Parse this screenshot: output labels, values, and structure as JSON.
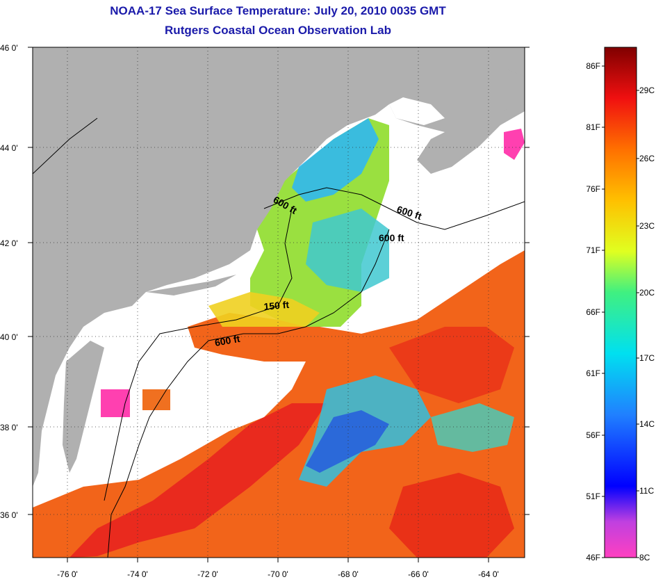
{
  "title": {
    "line1": "NOAA-17 Sea Surface Temperature:  July 20, 2010 0035 GMT",
    "line2": "Rutgers Coastal Ocean Observation Lab"
  },
  "map": {
    "lat_labels": [
      "46 0'",
      "44 0'",
      "42 0'",
      "40 0'",
      "38 0'",
      "36 0'"
    ],
    "lon_labels": [
      "-76 0'",
      "-74 0'",
      "-72 0'",
      "-70 0'",
      "-68 0'",
      "-66 0'",
      "-64 0'"
    ],
    "depth_labels": [
      "600 ft",
      "600 ft",
      "600 ft",
      "150 ft",
      "600 ft"
    ],
    "colors": {
      "land": "#b0b0b0",
      "cloud": "#ffffff",
      "warm": "#f06010",
      "hot": "#e81818",
      "mid": "#f0c020",
      "cool": "#40c8e0",
      "cold": "#2050e0",
      "frame": "#000000"
    }
  },
  "colorbar": {
    "fahrenheit": [
      "86F",
      "81F",
      "76F",
      "71F",
      "66F",
      "61F",
      "56F",
      "51F",
      "46F"
    ],
    "celsius": [
      "29C",
      "26C",
      "23C",
      "20C",
      "17C",
      "14C",
      "11C",
      "8C"
    ],
    "range_f": [
      46,
      88
    ],
    "range_c": [
      8,
      31
    ]
  }
}
